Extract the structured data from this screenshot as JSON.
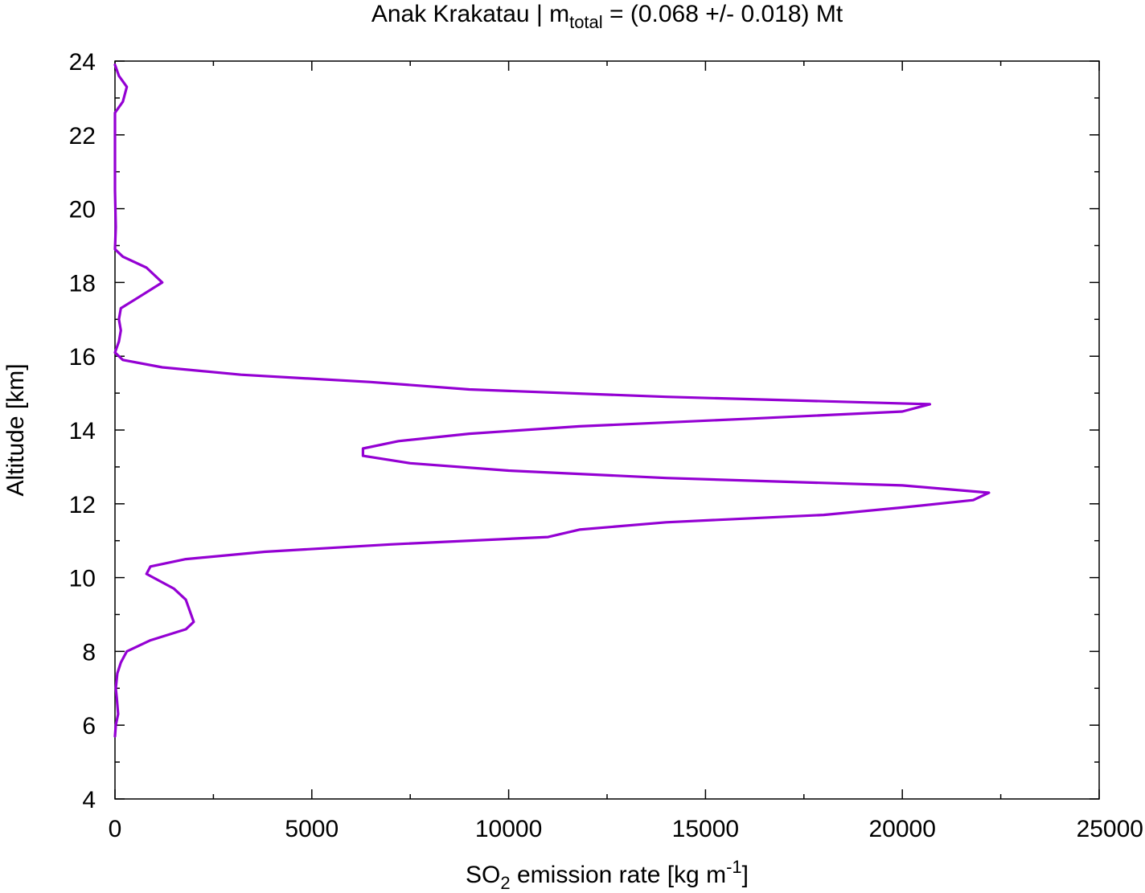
{
  "chart_data": {
    "type": "line",
    "title": {
      "prefix": "Anak Krakatau | m",
      "sub": "total",
      "suffix": " = (0.068 +/- 0.018) Mt"
    },
    "xlabel": {
      "prefix": "SO",
      "sub": "2",
      "middle": " emission rate [kg m",
      "sup": "-1",
      "suffix": "]"
    },
    "ylabel": "Altitude [km]",
    "xlim": [
      0,
      25000
    ],
    "ylim": [
      4,
      24
    ],
    "xticks": [
      0,
      5000,
      10000,
      15000,
      20000,
      25000
    ],
    "yticks": [
      4,
      6,
      8,
      10,
      12,
      14,
      16,
      18,
      20,
      22,
      24
    ],
    "xtick_labels": [
      "0",
      "5000",
      "10000",
      "15000",
      "20000",
      "25000"
    ],
    "ytick_labels": [
      "4",
      "6",
      "8",
      "10",
      "12",
      "14",
      "16",
      "18",
      "20",
      "22",
      "24"
    ],
    "grid": false,
    "line_color": "#9400d3",
    "series": [
      {
        "points": [
          [
            0,
            5.7
          ],
          [
            20,
            6.0
          ],
          [
            80,
            6.3
          ],
          [
            50,
            6.7
          ],
          [
            20,
            7.0
          ],
          [
            60,
            7.4
          ],
          [
            150,
            7.7
          ],
          [
            300,
            8.0
          ],
          [
            900,
            8.3
          ],
          [
            1800,
            8.6
          ],
          [
            2000,
            8.8
          ],
          [
            1900,
            9.1
          ],
          [
            1800,
            9.4
          ],
          [
            1500,
            9.7
          ],
          [
            800,
            10.1
          ],
          [
            900,
            10.3
          ],
          [
            1800,
            10.5
          ],
          [
            3800,
            10.7
          ],
          [
            7000,
            10.9
          ],
          [
            11000,
            11.1
          ],
          [
            11800,
            11.3
          ],
          [
            14000,
            11.5
          ],
          [
            18000,
            11.7
          ],
          [
            20000,
            11.9
          ],
          [
            21800,
            12.1
          ],
          [
            22200,
            12.3
          ],
          [
            20000,
            12.5
          ],
          [
            14000,
            12.7
          ],
          [
            10000,
            12.9
          ],
          [
            7500,
            13.1
          ],
          [
            6300,
            13.3
          ],
          [
            6300,
            13.5
          ],
          [
            7200,
            13.7
          ],
          [
            9000,
            13.9
          ],
          [
            11800,
            14.1
          ],
          [
            16000,
            14.3
          ],
          [
            20000,
            14.5
          ],
          [
            20700,
            14.7
          ],
          [
            14000,
            14.9
          ],
          [
            9000,
            15.1
          ],
          [
            6500,
            15.3
          ],
          [
            3200,
            15.5
          ],
          [
            1200,
            15.7
          ],
          [
            200,
            15.9
          ],
          [
            0,
            16.1
          ],
          [
            100,
            16.4
          ],
          [
            150,
            16.7
          ],
          [
            100,
            17.0
          ],
          [
            150,
            17.3
          ],
          [
            600,
            17.6
          ],
          [
            1200,
            18.0
          ],
          [
            800,
            18.4
          ],
          [
            200,
            18.7
          ],
          [
            0,
            18.9
          ],
          [
            20,
            19.5
          ],
          [
            0,
            20.5
          ],
          [
            0,
            21.5
          ],
          [
            0,
            22.6
          ],
          [
            200,
            22.9
          ],
          [
            300,
            23.3
          ],
          [
            100,
            23.6
          ],
          [
            0,
            23.9
          ]
        ]
      }
    ]
  }
}
